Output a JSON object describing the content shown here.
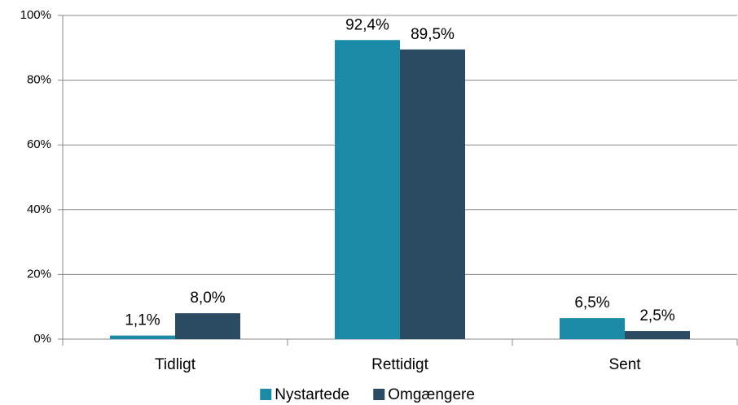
{
  "chart_data": {
    "type": "bar",
    "categories": [
      "Tidligt",
      "Rettidigt",
      "Sent"
    ],
    "series": [
      {
        "name": "Nystartede",
        "color": "#1b8aa6",
        "values": [
          1.1,
          92.4,
          6.5
        ],
        "value_labels": [
          "1,1%",
          "92,4%",
          "6,5%"
        ]
      },
      {
        "name": "Omgængere",
        "color": "#2a4b62",
        "values": [
          8.0,
          89.5,
          2.5
        ],
        "value_labels": [
          "8,0%",
          "89,5%",
          "2,5%"
        ]
      }
    ],
    "ylim": [
      0,
      100
    ],
    "yticks": [
      {
        "value": 0,
        "label": "0%"
      },
      {
        "value": 20,
        "label": "20%"
      },
      {
        "value": 40,
        "label": "40%"
      },
      {
        "value": 60,
        "label": "60%"
      },
      {
        "value": 80,
        "label": "80%"
      },
      {
        "value": 100,
        "label": "100%"
      }
    ],
    "grid": true,
    "legend": "bottom"
  }
}
